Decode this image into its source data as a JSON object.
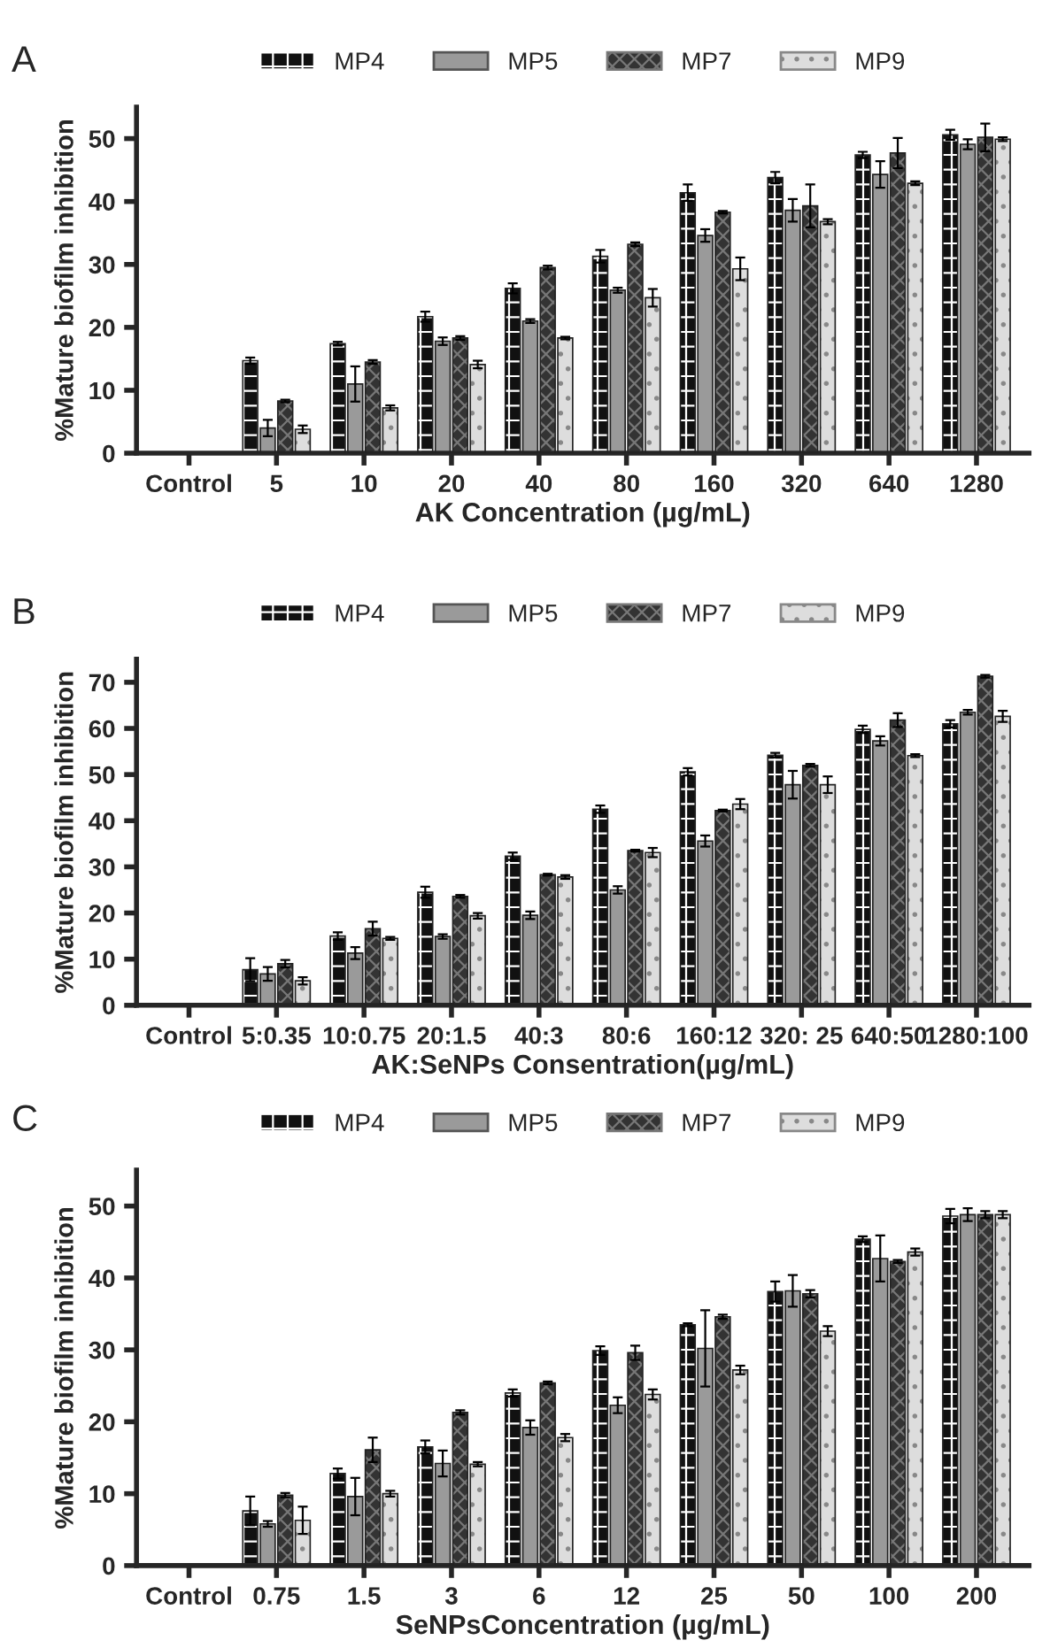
{
  "chart_data": [
    {
      "type": "bar",
      "annotations": [
        "A"
      ],
      "xlabel": "AK Concentration (µg/mL)",
      "ylabel": "%Mature biofilm inhibition",
      "legend": "top",
      "grid": false,
      "categories": [
        "Control",
        "5",
        "10",
        "20",
        "40",
        "80",
        "160",
        "320",
        "640",
        "1280"
      ],
      "ylim": [
        0,
        55
      ],
      "yticks": [
        0,
        10,
        20,
        30,
        40,
        50
      ],
      "series": [
        {
          "name": "MP4",
          "color": "#111111",
          "values": [
            null,
            14.7,
            17.4,
            21.7,
            26.2,
            31.3,
            41.4,
            43.8,
            47.4,
            50.6
          ],
          "errors": [
            null,
            0.5,
            0.3,
            0.8,
            0.8,
            1.0,
            1.3,
            0.9,
            0.5,
            0.8
          ]
        },
        {
          "name": "MP5",
          "color": "#9a9a9a",
          "values": [
            null,
            4.0,
            11.0,
            17.8,
            21.0,
            25.9,
            34.6,
            38.6,
            44.3,
            49.1
          ],
          "errors": [
            null,
            1.3,
            2.8,
            0.6,
            0.3,
            0.4,
            1.0,
            1.8,
            2.1,
            0.8
          ]
        },
        {
          "name": "MP7",
          "color": "#333333",
          "values": [
            null,
            8.3,
            14.5,
            18.3,
            29.5,
            33.2,
            38.3,
            39.3,
            47.7,
            50.2
          ],
          "errors": [
            null,
            0.2,
            0.3,
            0.3,
            0.3,
            0.3,
            0.2,
            3.4,
            2.4,
            2.2
          ]
        },
        {
          "name": "MP9",
          "color": "#dddddd",
          "values": [
            null,
            3.8,
            7.2,
            14.1,
            18.3,
            24.7,
            29.3,
            36.8,
            42.9,
            49.9
          ],
          "errors": [
            null,
            0.6,
            0.4,
            0.6,
            0.2,
            1.4,
            1.8,
            0.4,
            0.3,
            0.3
          ]
        }
      ]
    },
    {
      "type": "bar",
      "annotations": [
        "B"
      ],
      "xlabel": "AK:SeNPs Consentration(µg/mL)",
      "ylabel": "%Mature biofilm inhibition",
      "legend": "top",
      "grid": false,
      "categories": [
        "Control",
        "5:0.35",
        "10:0.75",
        "20:1.5",
        "40:3",
        "80:6",
        "160:12",
        "320: 25",
        "640:50",
        "1280:100"
      ],
      "ylim": [
        0,
        75
      ],
      "yticks": [
        0,
        10,
        20,
        30,
        40,
        50,
        60,
        70
      ],
      "series": [
        {
          "name": "MP4",
          "color": "#111111",
          "values": [
            null,
            7.7,
            15.0,
            24.5,
            32.3,
            42.5,
            50.6,
            54.2,
            59.8,
            61.0
          ],
          "errors": [
            null,
            2.5,
            0.8,
            1.2,
            0.8,
            0.8,
            0.8,
            0.5,
            0.8,
            0.8
          ]
        },
        {
          "name": "MP5",
          "color": "#9a9a9a",
          "values": [
            null,
            6.8,
            11.3,
            14.9,
            19.5,
            25.0,
            35.6,
            47.8,
            57.3,
            63.5
          ],
          "errors": [
            null,
            1.5,
            1.3,
            0.5,
            0.8,
            0.8,
            1.2,
            3.0,
            1.0,
            0.5
          ]
        },
        {
          "name": "MP7",
          "color": "#333333",
          "values": [
            null,
            9.0,
            16.6,
            23.6,
            28.3,
            33.5,
            42.2,
            52.0,
            61.8,
            71.3
          ],
          "errors": [
            null,
            0.8,
            1.5,
            0.3,
            0.2,
            0.2,
            0.2,
            0.3,
            1.5,
            0.3
          ]
        },
        {
          "name": "MP9",
          "color": "#dddddd",
          "values": [
            null,
            5.3,
            14.5,
            19.4,
            27.8,
            33.1,
            43.6,
            47.8,
            54.1,
            62.6
          ],
          "errors": [
            null,
            0.8,
            0.3,
            0.6,
            0.4,
            1.0,
            1.1,
            1.8,
            0.3,
            1.2
          ]
        }
      ]
    },
    {
      "type": "bar",
      "annotations": [
        "C"
      ],
      "xlabel": "SeNPsConcentration (µg/mL)",
      "ylabel": "%Mature biofilm inhibition",
      "legend": "top",
      "grid": false,
      "categories": [
        "Control",
        "0.75",
        "1.5",
        "3",
        "6",
        "12",
        "25",
        "50",
        "100",
        "200"
      ],
      "ylim": [
        0,
        55
      ],
      "yticks": [
        0,
        10,
        20,
        30,
        40,
        50
      ],
      "series": [
        {
          "name": "MP4",
          "color": "#111111",
          "values": [
            null,
            7.6,
            12.8,
            16.5,
            24.0,
            29.9,
            33.5,
            38.1,
            45.4,
            48.6
          ],
          "errors": [
            null,
            2.0,
            0.7,
            0.9,
            0.5,
            0.6,
            0.2,
            1.4,
            0.4,
            1.0
          ]
        },
        {
          "name": "MP5",
          "color": "#9a9a9a",
          "values": [
            null,
            5.8,
            9.6,
            14.2,
            19.2,
            22.3,
            30.2,
            38.2,
            42.7,
            48.8
          ],
          "errors": [
            null,
            0.4,
            2.6,
            1.8,
            1.0,
            1.1,
            5.3,
            2.2,
            3.2,
            0.9
          ]
        },
        {
          "name": "MP7",
          "color": "#333333",
          "values": [
            null,
            9.8,
            16.1,
            21.3,
            25.4,
            29.6,
            34.6,
            37.8,
            42.3,
            48.8
          ],
          "errors": [
            null,
            0.3,
            1.7,
            0.3,
            0.2,
            1.0,
            0.3,
            0.5,
            0.2,
            0.5
          ]
        },
        {
          "name": "MP9",
          "color": "#dddddd",
          "values": [
            null,
            6.3,
            10.0,
            14.1,
            17.8,
            23.8,
            27.2,
            32.6,
            43.6,
            48.8
          ],
          "errors": [
            null,
            1.9,
            0.4,
            0.3,
            0.5,
            0.7,
            0.6,
            0.7,
            0.5,
            0.5
          ]
        }
      ]
    }
  ]
}
